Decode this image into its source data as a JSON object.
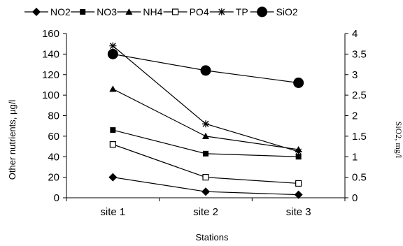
{
  "chart_data": {
    "type": "line",
    "categories": [
      "site 1",
      "site 2",
      "site 3"
    ],
    "xlabel": "Stations",
    "ylabel_left": "Other nutrients, µg/l",
    "ylabel_right": "SiO2, mg/l",
    "y_left_lim": [
      0,
      160
    ],
    "y_left_ticks": [
      "0",
      "20",
      "40",
      "60",
      "80",
      "100",
      "120",
      "140",
      "160"
    ],
    "y_right_lim": [
      0,
      4
    ],
    "y_right_ticks": [
      "0",
      "0.5",
      "1",
      "1.5",
      "2",
      "2.5",
      "3",
      "3.5",
      "4"
    ],
    "grid": false,
    "legend_position": "top",
    "series": [
      {
        "name": "NO2",
        "axis": "left",
        "marker": "diamond",
        "values": [
          20,
          6,
          3
        ]
      },
      {
        "name": "NO3",
        "axis": "left",
        "marker": "square",
        "values": [
          66,
          43,
          40
        ]
      },
      {
        "name": "NH4",
        "axis": "left",
        "marker": "triangle",
        "values": [
          106,
          60,
          47
        ]
      },
      {
        "name": "PO4",
        "axis": "left",
        "marker": "open-square",
        "values": [
          52,
          20,
          14
        ]
      },
      {
        "name": "TP",
        "axis": "left",
        "marker": "star",
        "values": [
          148,
          72,
          45
        ]
      },
      {
        "name": "SiO2",
        "axis": "right",
        "marker": "circle",
        "values": [
          3.5,
          3.1,
          2.8
        ]
      }
    ]
  }
}
